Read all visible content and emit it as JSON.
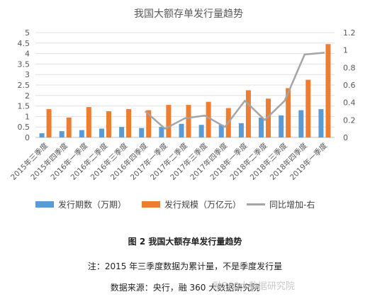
{
  "chart_data": {
    "type": "bar",
    "title": "我国大额存单发行量趋势",
    "categories": [
      "2015年三季度",
      "2015年四季度",
      "2016年一季度",
      "2016年二季度",
      "2016年三季度",
      "2016年四季度",
      "2017年一季度",
      "2017年二季度",
      "2017年三季度",
      "2017年四季度",
      "2018年一季度",
      "2018年二季度",
      "2018年三季度",
      "2018年四季度",
      "2019年一季度"
    ],
    "series": [
      {
        "name": "发行期数（万期）",
        "kind": "bar",
        "axis": "left",
        "color": "#5b9bd5",
        "values": [
          0.2,
          0.3,
          0.35,
          0.42,
          0.5,
          0.45,
          0.5,
          0.65,
          0.6,
          0.6,
          0.68,
          0.95,
          1.05,
          1.3,
          1.35
        ]
      },
      {
        "name": "发行规模（万亿元）",
        "kind": "bar",
        "axis": "left",
        "color": "#ed7d31",
        "values": [
          1.35,
          0.95,
          1.45,
          1.25,
          1.35,
          1.3,
          1.55,
          1.55,
          1.7,
          1.4,
          2.25,
          1.85,
          2.35,
          2.75,
          4.45
        ]
      },
      {
        "name": "同比增加-右",
        "kind": "line",
        "axis": "right",
        "color": "#a5a5a5",
        "values": [
          null,
          null,
          null,
          null,
          null,
          0.3,
          0.1,
          0.22,
          0.25,
          0.12,
          0.42,
          0.2,
          0.42,
          0.95,
          0.97
        ]
      }
    ],
    "ylim_left": [
      0,
      5
    ],
    "yticks_left": [
      "0",
      "0.5",
      "1",
      "1.5",
      "2",
      "2.5",
      "3",
      "3.5",
      "4",
      "4.5",
      "5"
    ],
    "ylim_right": [
      0,
      1.2
    ],
    "yticks_right": [
      "0",
      "0.2",
      "0.4",
      "0.6",
      "0.8",
      "1",
      "1.2"
    ],
    "grid": true,
    "legend_position": "bottom"
  },
  "captions": {
    "figure": "图 2  我国大额存单发行量趋势",
    "note": "注：2015 年三季度数据为累计量，不是季度发行量",
    "source": "数据来源：央行，融 360 大数据研究院"
  },
  "watermark": "融360大数据研究院"
}
